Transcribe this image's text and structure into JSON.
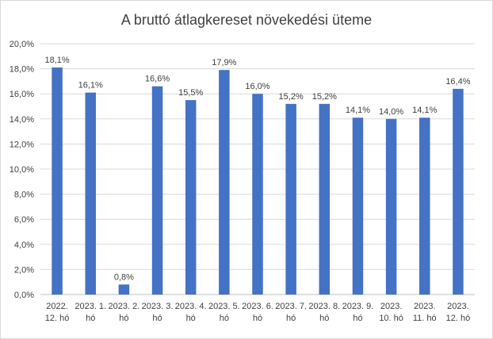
{
  "chart_data": {
    "type": "bar",
    "title": "A bruttó átlagkereset növekedési üteme",
    "xlabel": "",
    "ylabel": "",
    "ylim": [
      0,
      20
    ],
    "y_ticks": [
      "0,0%",
      "2,0%",
      "4,0%",
      "6,0%",
      "8,0%",
      "10,0%",
      "12,0%",
      "14,0%",
      "16,0%",
      "18,0%",
      "20,0%"
    ],
    "y_tick_values": [
      0,
      2,
      4,
      6,
      8,
      10,
      12,
      14,
      16,
      18,
      20
    ],
    "categories": [
      [
        "2022.",
        "12. hó"
      ],
      [
        "2023. 1.",
        "hó"
      ],
      [
        "2023. 2.",
        "hó"
      ],
      [
        "2023. 3.",
        "hó"
      ],
      [
        "2023. 4.",
        "hó"
      ],
      [
        "2023. 5.",
        "hó"
      ],
      [
        "2023. 6.",
        "hó"
      ],
      [
        "2023. 7.",
        "hó"
      ],
      [
        "2023. 8.",
        "hó"
      ],
      [
        "2023. 9.",
        "hó"
      ],
      [
        "2023.",
        "10. hó"
      ],
      [
        "2023.",
        "11. hó"
      ],
      [
        "2023.",
        "12. hó"
      ]
    ],
    "values": [
      18.1,
      16.1,
      0.8,
      16.6,
      15.5,
      17.9,
      16.0,
      15.2,
      15.2,
      14.1,
      14.0,
      14.1,
      16.4
    ],
    "data_labels": [
      "18,1%",
      "16,1%",
      "0,8%",
      "16,6%",
      "15,5%",
      "17,9%",
      "16,0%",
      "15,2%",
      "15,2%",
      "14,1%",
      "14,0%",
      "14,1%",
      "16,4%"
    ],
    "bar_color": "#4472c4",
    "grid": true,
    "legend": "none"
  }
}
